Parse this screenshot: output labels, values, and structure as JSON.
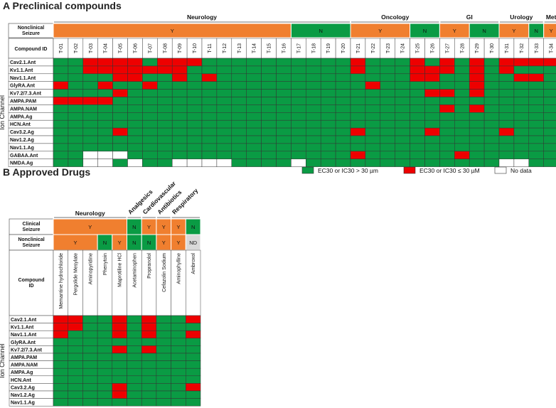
{
  "colors": {
    "green": "#0a9b44",
    "red": "#ee0000",
    "orange": "#f07f2f",
    "nd": "#d9d9d9",
    "white": "#ffffff"
  },
  "panelA": {
    "title": "A  Preclinical compounds",
    "groups": [
      {
        "label": "Neurology",
        "start": 0,
        "end": 19
      },
      {
        "label": "Oncology",
        "start": 20,
        "end": 25
      },
      {
        "label": "GI",
        "start": 26,
        "end": 29
      },
      {
        "label": "Urology",
        "start": 30,
        "end": 32
      },
      {
        "label": "Met",
        "start": 33,
        "end": 33
      }
    ],
    "seizure_label": "Nonclinical Seizure",
    "seizure_segments": [
      {
        "label": "Y",
        "start": 0,
        "end": 15,
        "color": "orange"
      },
      {
        "label": "N",
        "start": 16,
        "end": 19,
        "color": "green"
      },
      {
        "label": "Y",
        "start": 20,
        "end": 23,
        "color": "orange"
      },
      {
        "label": "N",
        "start": 24,
        "end": 25,
        "color": "green"
      },
      {
        "label": "Y",
        "start": 26,
        "end": 27,
        "color": "orange"
      },
      {
        "label": "N",
        "start": 28,
        "end": 29,
        "color": "green"
      },
      {
        "label": "Y",
        "start": 30,
        "end": 31,
        "color": "orange"
      },
      {
        "label": "N",
        "start": 32,
        "end": 32,
        "color": "green"
      },
      {
        "label": "Y",
        "start": 33,
        "end": 33,
        "color": "orange"
      }
    ],
    "compound_id_label": "Compound ID",
    "compounds": [
      "T-01",
      "T-02",
      "T-03",
      "T-04",
      "T-05",
      "T-06",
      "T-07",
      "T-08",
      "T-09",
      "T-10",
      "T-11",
      "T-12",
      "T-13",
      "T-14",
      "T-15",
      "T-16",
      "T-17",
      "T-18",
      "T-19",
      "T-20",
      "T-21",
      "T-22",
      "T-23",
      "T-24",
      "T-25",
      "T-26",
      "T-27",
      "T-28",
      "T-29",
      "T-30",
      "T-31",
      "T-32",
      "T-33",
      "T-34"
    ],
    "axis_label": "Ion Channel",
    "rows": [
      {
        "name": "Cav2.1.Ant",
        "red": [
          2,
          3,
          4,
          5,
          7,
          8,
          9,
          20,
          24,
          26,
          28,
          30,
          31,
          32,
          33
        ],
        "nodata": []
      },
      {
        "name": "Kv1.1.Ant",
        "red": [
          2,
          3,
          4,
          5,
          6,
          7,
          8,
          20,
          24,
          25,
          26,
          28,
          30
        ],
        "nodata": []
      },
      {
        "name": "Nav1.1.Ant",
        "red": [
          4,
          5,
          8,
          10,
          24,
          25,
          28,
          31,
          32
        ],
        "nodata": []
      },
      {
        "name": "GlyRA.Ant",
        "red": [
          0,
          3,
          6,
          21,
          28
        ],
        "nodata": []
      },
      {
        "name": "Kv7.2/7.3.Ant",
        "red": [
          4,
          25,
          26,
          28
        ],
        "nodata": []
      },
      {
        "name": "AMPA.PAM",
        "red": [
          0,
          1,
          2,
          3
        ],
        "nodata": []
      },
      {
        "name": "AMPA.NAM",
        "red": [
          26,
          28
        ],
        "nodata": []
      },
      {
        "name": "AMPA.Ag",
        "red": [],
        "nodata": []
      },
      {
        "name": "HCN.Ant",
        "red": [],
        "nodata": []
      },
      {
        "name": "Cav3.2.Ag",
        "red": [
          4,
          20,
          25,
          30
        ],
        "nodata": []
      },
      {
        "name": "Nav1.2.Ag",
        "red": [],
        "nodata": []
      },
      {
        "name": "Nav1.1.Ag",
        "red": [],
        "nodata": []
      },
      {
        "name": "GABAA.Ant",
        "red": [
          20,
          27
        ],
        "nodata": [
          2,
          3,
          4
        ]
      },
      {
        "name": "NMDA.Ag",
        "red": [],
        "nodata": [
          2,
          3,
          5,
          8,
          9,
          10,
          11,
          16,
          30,
          31
        ]
      }
    ]
  },
  "legend": [
    {
      "label": "EC30 or IC30 > 30 µm",
      "color": "green"
    },
    {
      "label": "EC30 or IC30 ≤ 30 µM",
      "color": "red"
    },
    {
      "label": "No data",
      "color": "white"
    }
  ],
  "panelB": {
    "title": "B  Approved Drugs",
    "groups": [
      {
        "label": "Neurology",
        "start": 0,
        "end": 4
      },
      {
        "label": "Analgesics",
        "start": 5,
        "end": 5
      },
      {
        "label": "Cardiovascular",
        "start": 6,
        "end": 6
      },
      {
        "label": "Antibiotics",
        "start": 7,
        "end": 7
      },
      {
        "label": "Respiratory",
        "start": 8,
        "end": 9
      }
    ],
    "clinical_label": "Clinical Seizure",
    "clinical_segments": [
      {
        "label": "Y",
        "start": 0,
        "end": 4,
        "color": "orange"
      },
      {
        "label": "N",
        "start": 5,
        "end": 5,
        "color": "green"
      },
      {
        "label": "Y",
        "start": 6,
        "end": 6,
        "color": "orange"
      },
      {
        "label": "Y",
        "start": 7,
        "end": 7,
        "color": "orange"
      },
      {
        "label": "Y",
        "start": 8,
        "end": 8,
        "color": "orange"
      },
      {
        "label": "N",
        "start": 9,
        "end": 9,
        "color": "green"
      }
    ],
    "nonclinical_label": "Nonclinical Seizure",
    "nonclinical_segments": [
      {
        "label": "Y",
        "start": 0,
        "end": 2,
        "color": "orange"
      },
      {
        "label": "N",
        "start": 3,
        "end": 3,
        "color": "green"
      },
      {
        "label": "Y",
        "start": 4,
        "end": 4,
        "color": "orange"
      },
      {
        "label": "N",
        "start": 5,
        "end": 5,
        "color": "green"
      },
      {
        "label": "N",
        "start": 6,
        "end": 6,
        "color": "green"
      },
      {
        "label": "Y",
        "start": 7,
        "end": 7,
        "color": "orange"
      },
      {
        "label": "Y",
        "start": 8,
        "end": 8,
        "color": "orange"
      },
      {
        "label": "ND",
        "start": 9,
        "end": 9,
        "color": "nd"
      }
    ],
    "compound_id_label": "Compound ID",
    "compounds": [
      "Memantine hydrochloride",
      "Pergolide Mesylate",
      "Aminopyridine",
      "Phenytoin",
      "Maprotiline HCl",
      "Acetaminophen",
      "Propranolol",
      "Cefazolin Sodium",
      "Aminophylline",
      "Ambroxol"
    ],
    "axis_label": "Ion Channel",
    "rows": [
      {
        "name": "Cav2.1.Ant",
        "red": [
          0,
          1,
          4,
          6,
          9
        ]
      },
      {
        "name": "Kv1.1.Ant",
        "red": [
          0,
          1,
          4,
          6
        ]
      },
      {
        "name": "Nav1.1.Ant",
        "red": [
          0,
          4,
          6,
          9
        ]
      },
      {
        "name": "GlyRA.Ant",
        "red": []
      },
      {
        "name": "Kv7.2/7.3.Ant",
        "red": [
          4,
          6
        ]
      },
      {
        "name": "AMPA.PAM",
        "red": []
      },
      {
        "name": "AMPA.NAM",
        "red": []
      },
      {
        "name": "AMPA.Ag",
        "red": []
      },
      {
        "name": "HCN.Ant",
        "red": []
      },
      {
        "name": "Cav3.2.Ag",
        "red": [
          4,
          9
        ]
      },
      {
        "name": "Nav1.2.Ag",
        "red": [
          4
        ]
      },
      {
        "name": "Nav1.1.Ag",
        "red": []
      }
    ]
  }
}
